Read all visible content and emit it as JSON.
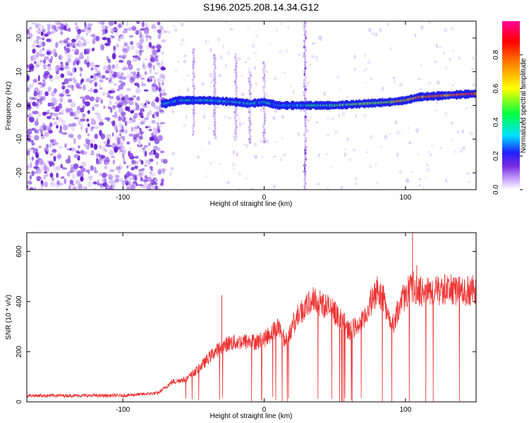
{
  "title": "S196.2025.208.14.34.G12",
  "chart_data": [
    {
      "type": "heatmap",
      "xlabel": "Height of straight line (km)",
      "ylabel": "Frequency (Hz)",
      "xlim": [
        -168,
        150
      ],
      "ylim": [
        -25,
        25
      ],
      "x_ticks": [
        -100,
        0,
        100
      ],
      "y_ticks": [
        -20,
        -10,
        0,
        10,
        20
      ],
      "colorbar": {
        "label": "Normalized spectral amplitude",
        "range": [
          0,
          1
        ],
        "ticks": [
          0.0,
          0.2,
          0.4,
          0.6,
          0.8
        ],
        "colors": [
          "#ffffff",
          "#c9a6ff",
          "#7a2be0",
          "#2020ff",
          "#00e0ff",
          "#00ff40",
          "#ffff00",
          "#ff8000",
          "#ff0000",
          "#ff00aa"
        ]
      },
      "ridge": {
        "x": [
          -70,
          -60,
          -40,
          -20,
          -10,
          0,
          10,
          30,
          50,
          70,
          90,
          100,
          110,
          130,
          150
        ],
        "y": [
          0.5,
          1.5,
          1.5,
          1,
          0.5,
          1,
          0,
          0,
          0,
          0.5,
          1,
          1.5,
          2.5,
          3,
          3.5
        ]
      },
      "vertical_stripes_x": [
        -50,
        -35,
        -20,
        -10,
        0,
        29
      ]
    },
    {
      "type": "line",
      "xlabel": "Height of straight line (km)",
      "ylabel": "SNR (10 * v/v)",
      "xlim": [
        -168,
        150
      ],
      "ylim": [
        0,
        675
      ],
      "x_ticks": [
        -100,
        0,
        100
      ],
      "y_ticks": [
        0,
        200,
        400,
        600
      ],
      "color": "#ee3333",
      "envelope": {
        "x": [
          -168,
          -140,
          -100,
          -75,
          -65,
          -55,
          -45,
          -35,
          -25,
          -15,
          -5,
          0,
          10,
          15,
          20,
          25,
          30,
          35,
          45,
          55,
          60,
          65,
          70,
          75,
          80,
          85,
          90,
          95,
          100,
          105,
          110,
          120,
          130,
          140,
          150
        ],
        "y": [
          25,
          25,
          25,
          35,
          80,
          90,
          140,
          200,
          235,
          240,
          240,
          250,
          300,
          240,
          300,
          355,
          380,
          410,
          380,
          330,
          280,
          300,
          320,
          390,
          440,
          410,
          290,
          370,
          430,
          460,
          440,
          440,
          450,
          440,
          445
        ]
      },
      "spikes": [
        {
          "x": -30,
          "y": 425
        },
        {
          "x": 105,
          "y": 675
        },
        {
          "x": 108,
          "y": 545
        }
      ]
    }
  ]
}
